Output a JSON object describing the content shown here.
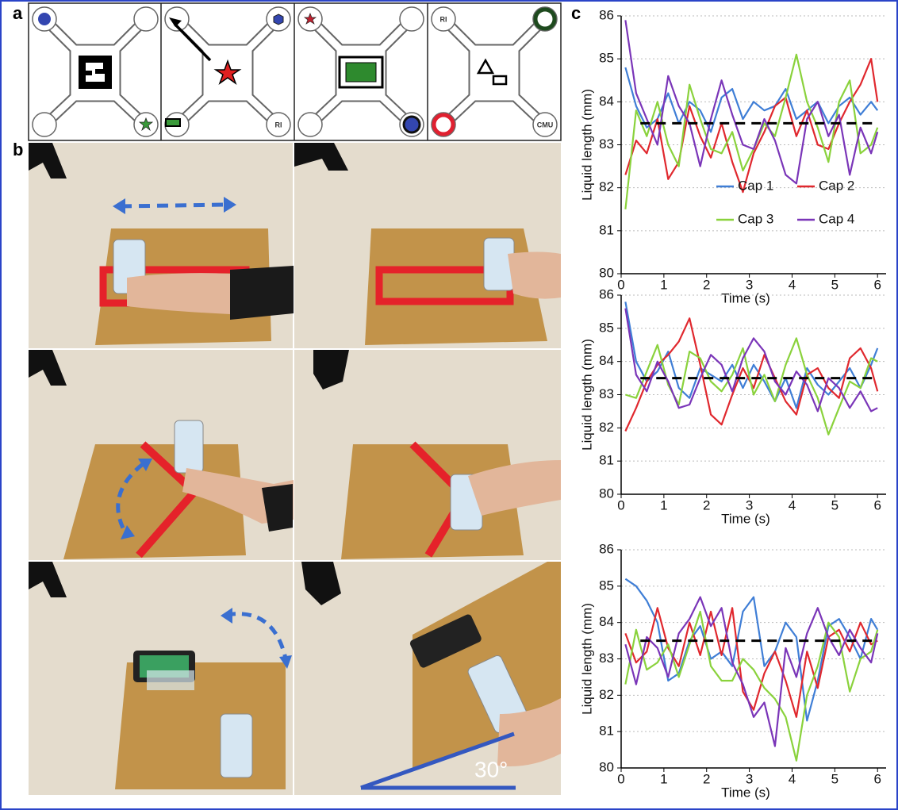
{
  "panel_a": {
    "label": "a",
    "cell_texts": [
      "RI",
      "RI",
      "CMU"
    ]
  },
  "panel_b": {
    "label": "b",
    "angle_label": "30°"
  },
  "panel_c_label": "c",
  "chart_data": [
    {
      "type": "line",
      "xlabel": "Time (s)",
      "ylabel": "Liquid length (mm)",
      "xlim": [
        0,
        6.2
      ],
      "xticks": [
        0,
        1,
        2,
        3,
        4,
        5,
        6
      ],
      "ylim": [
        80,
        86
      ],
      "yticks": [
        80,
        81,
        82,
        83,
        84,
        85,
        86
      ],
      "grid": true,
      "legend": "lower right",
      "hline": 83.5,
      "x": [
        0.1,
        0.35,
        0.6,
        0.85,
        1.1,
        1.35,
        1.6,
        1.85,
        2.1,
        2.35,
        2.6,
        2.85,
        3.1,
        3.35,
        3.6,
        3.85,
        4.1,
        4.35,
        4.6,
        4.85,
        5.1,
        5.35,
        5.6,
        5.85,
        6.0
      ],
      "series": [
        {
          "name": "Cap 1",
          "color": "#3f7ed6",
          "values": [
            84.8,
            83.9,
            83.4,
            83.6,
            84.2,
            83.5,
            84.0,
            83.8,
            83.3,
            84.1,
            84.3,
            83.6,
            84.0,
            83.8,
            83.9,
            84.3,
            83.6,
            83.8,
            84.0,
            83.5,
            83.9,
            84.1,
            83.7,
            84.0,
            83.8
          ]
        },
        {
          "name": "Cap 2",
          "color": "#e0282e",
          "values": [
            82.3,
            83.1,
            82.8,
            83.6,
            82.2,
            82.6,
            83.9,
            83.2,
            82.7,
            83.5,
            82.6,
            81.9,
            82.8,
            83.3,
            83.9,
            84.1,
            83.2,
            83.8,
            83.0,
            82.9,
            83.5,
            84.0,
            84.4,
            85.0,
            84.0
          ]
        },
        {
          "name": "Cap 3",
          "color": "#8ad23c",
          "values": [
            81.5,
            83.8,
            83.2,
            84.0,
            83.0,
            82.5,
            84.4,
            83.6,
            82.9,
            82.8,
            83.3,
            82.4,
            82.9,
            83.5,
            83.2,
            84.1,
            85.1,
            84.0,
            83.4,
            82.6,
            84.0,
            84.5,
            82.8,
            83.0,
            83.4
          ]
        },
        {
          "name": "Cap 4",
          "color": "#7a35b8",
          "values": [
            85.9,
            84.2,
            83.6,
            83.0,
            84.6,
            83.9,
            83.5,
            82.5,
            83.6,
            84.5,
            83.7,
            83.0,
            82.9,
            83.6,
            83.1,
            82.3,
            82.1,
            83.6,
            84.0,
            83.2,
            83.7,
            82.3,
            83.4,
            82.8,
            83.3
          ]
        }
      ]
    },
    {
      "type": "line",
      "xlabel": "Time (s)",
      "ylabel": "Liquid length (mm)",
      "xlim": [
        0,
        6.2
      ],
      "xticks": [
        0,
        1,
        2,
        3,
        4,
        5,
        6
      ],
      "ylim": [
        80,
        86
      ],
      "yticks": [
        80,
        81,
        82,
        83,
        84,
        85,
        86
      ],
      "grid": true,
      "hline": 83.5,
      "x": [
        0.1,
        0.35,
        0.6,
        0.85,
        1.1,
        1.35,
        1.6,
        1.85,
        2.1,
        2.35,
        2.6,
        2.85,
        3.1,
        3.35,
        3.6,
        3.85,
        4.1,
        4.35,
        4.6,
        4.85,
        5.1,
        5.35,
        5.6,
        5.85,
        6.0
      ],
      "series": [
        {
          "color": "#3f7ed6",
          "values": [
            85.8,
            84.0,
            83.4,
            83.7,
            84.3,
            83.2,
            82.9,
            83.8,
            83.6,
            83.4,
            83.9,
            83.2,
            83.9,
            83.4,
            82.8,
            83.5,
            82.6,
            83.8,
            83.3,
            83.0,
            83.4,
            83.8,
            83.2,
            83.9,
            84.4
          ]
        },
        {
          "color": "#e0282e",
          "values": [
            81.9,
            82.6,
            83.4,
            83.9,
            84.2,
            84.6,
            85.3,
            83.9,
            82.4,
            82.1,
            83.0,
            83.8,
            83.2,
            84.2,
            83.5,
            82.8,
            82.4,
            83.6,
            83.8,
            83.2,
            82.9,
            84.1,
            84.4,
            83.8,
            83.1
          ]
        },
        {
          "color": "#8ad23c",
          "values": [
            83.0,
            82.9,
            83.7,
            84.5,
            83.3,
            82.7,
            84.3,
            84.1,
            83.4,
            83.1,
            83.6,
            84.4,
            83.0,
            83.6,
            82.8,
            83.9,
            84.7,
            83.6,
            82.9,
            81.8,
            82.6,
            83.4,
            83.2,
            84.1,
            84.0
          ]
        },
        {
          "color": "#7a35b8",
          "values": [
            85.6,
            83.6,
            83.1,
            84.0,
            83.4,
            82.6,
            82.7,
            83.5,
            84.2,
            83.9,
            83.1,
            84.1,
            84.7,
            84.3,
            83.4,
            83.0,
            83.7,
            83.3,
            82.5,
            83.5,
            83.2,
            82.6,
            83.1,
            82.5,
            82.6
          ]
        }
      ]
    },
    {
      "type": "line",
      "xlabel": "Time (s)",
      "ylabel": "Liquid length (mm)",
      "xlim": [
        0,
        6.2
      ],
      "xticks": [
        0,
        1,
        2,
        3,
        4,
        5,
        6
      ],
      "ylim": [
        80,
        86
      ],
      "yticks": [
        80,
        81,
        82,
        83,
        84,
        85,
        86
      ],
      "grid": true,
      "hline": 83.5,
      "x": [
        0.1,
        0.35,
        0.6,
        0.85,
        1.1,
        1.35,
        1.6,
        1.85,
        2.1,
        2.35,
        2.6,
        2.85,
        3.1,
        3.35,
        3.6,
        3.85,
        4.1,
        4.35,
        4.6,
        4.85,
        5.1,
        5.35,
        5.6,
        5.85,
        6.0
      ],
      "series": [
        {
          "color": "#3f7ed6",
          "values": [
            85.2,
            85.0,
            84.6,
            84.0,
            82.4,
            82.6,
            83.5,
            83.9,
            83.0,
            83.2,
            82.8,
            84.3,
            84.7,
            82.8,
            83.2,
            84.0,
            83.6,
            81.3,
            82.4,
            83.9,
            84.1,
            83.6,
            83.0,
            84.1,
            83.8
          ]
        },
        {
          "color": "#e0282e",
          "values": [
            83.7,
            82.9,
            83.2,
            84.4,
            83.3,
            82.8,
            84.0,
            83.1,
            84.3,
            83.1,
            84.4,
            82.1,
            81.6,
            82.6,
            83.2,
            82.4,
            81.4,
            83.2,
            82.2,
            83.6,
            83.8,
            83.2,
            84.0,
            83.4,
            83.5
          ]
        },
        {
          "color": "#8ad23c",
          "values": [
            82.3,
            83.8,
            82.7,
            82.9,
            83.4,
            82.5,
            83.4,
            84.3,
            82.8,
            82.4,
            82.4,
            83.0,
            82.7,
            82.2,
            81.9,
            81.4,
            80.2,
            82.0,
            82.8,
            84.0,
            83.6,
            82.1,
            83.0,
            83.2,
            83.8
          ]
        },
        {
          "color": "#7a35b8",
          "values": [
            83.4,
            82.3,
            83.6,
            83.3,
            82.5,
            83.7,
            84.1,
            84.7,
            83.9,
            84.4,
            82.9,
            82.3,
            81.4,
            81.8,
            80.6,
            83.3,
            82.5,
            83.7,
            84.4,
            83.6,
            83.1,
            83.8,
            83.3,
            82.9,
            83.7
          ]
        }
      ]
    }
  ]
}
